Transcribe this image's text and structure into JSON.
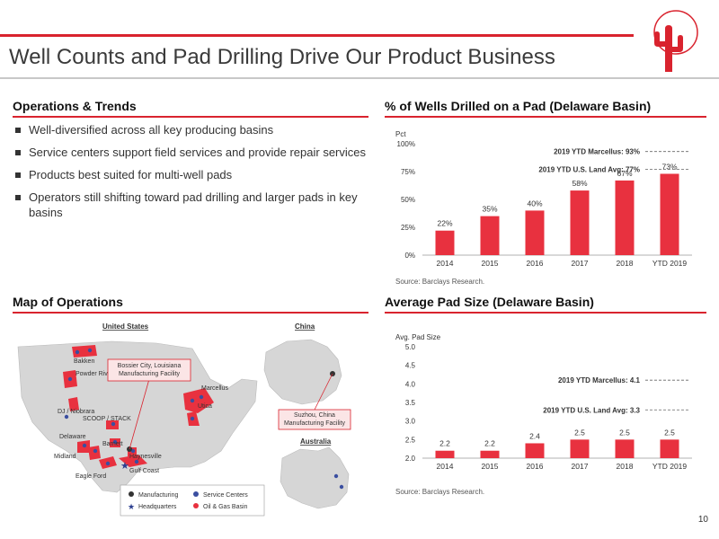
{
  "slide": {
    "title": "Well Counts and Pad Drilling Drive Our Product Business",
    "page_number": "10",
    "accent_color": "#d9232e"
  },
  "operations": {
    "heading": "Operations & Trends",
    "bullets": [
      "Well-diversified across all key producing basins",
      "Service centers support field services and provide repair services",
      "Products best suited for multi-well pads",
      "Operators still shifting toward pad drilling and larger pads in key basins"
    ]
  },
  "map": {
    "heading": "Map of Operations",
    "us_label": "United States",
    "china_label": "China",
    "australia_label": "Australia",
    "basins": [
      "Bakken",
      "Powder River Basin",
      "DJ / Niobrara",
      "SCOOP / STACK",
      "Delaware",
      "Midland",
      "Barnett",
      "Haynesville",
      "Eagle Ford",
      "Gulf Coast",
      "Marcellus",
      "Utica"
    ],
    "callout_bossier": "Bossier City, Louisiana Manufacturing Facility",
    "callout_suzhou": "Suzhou, China Manufacturing Facility",
    "legend": {
      "manufacturing": "Manufacturing",
      "headquarters": "Headquarters",
      "service_centers": "Service Centers",
      "basin": "Oil & Gas Basin"
    }
  },
  "chart_data": [
    {
      "type": "bar",
      "title": "% of Wells Drilled on a Pad (Delaware Basin)",
      "ylabel": "Pct",
      "categories": [
        "2014",
        "2015",
        "2016",
        "2017",
        "2018",
        "YTD 2019"
      ],
      "values": [
        22,
        35,
        40,
        58,
        67,
        73
      ],
      "value_labels": [
        "22%",
        "35%",
        "40%",
        "58%",
        "67%",
        "73%"
      ],
      "ylim": [
        0,
        100
      ],
      "yticks": [
        0,
        25,
        50,
        75,
        100
      ],
      "ytick_labels": [
        "0%",
        "25%",
        "50%",
        "75%",
        "100%"
      ],
      "reference_lines": [
        {
          "label": "2019 YTD Marcellus: 93%",
          "value": 93
        },
        {
          "label": "2019 YTD U.S. Land Avg: 77%",
          "value": 77
        }
      ],
      "source": "Source: Barclays Research.",
      "bar_color": "#e8313f"
    },
    {
      "type": "bar",
      "title": "Average Pad Size (Delaware Basin)",
      "ylabel": "Avg. Pad Size",
      "categories": [
        "2014",
        "2015",
        "2016",
        "2017",
        "2018",
        "YTD 2019"
      ],
      "values": [
        2.2,
        2.2,
        2.4,
        2.5,
        2.5,
        2.5
      ],
      "value_labels": [
        "2.2",
        "2.2",
        "2.4",
        "2.5",
        "2.5",
        "2.5"
      ],
      "ylim": [
        2.0,
        5.0
      ],
      "yticks": [
        2.0,
        2.5,
        3.0,
        3.5,
        4.0,
        4.5,
        5.0
      ],
      "ytick_labels": [
        "2.0",
        "2.5",
        "3.0",
        "3.5",
        "4.0",
        "4.5",
        "5.0"
      ],
      "reference_lines": [
        {
          "label": "2019 YTD Marcellus: 4.1",
          "value": 4.1
        },
        {
          "label": "2019 YTD U.S. Land Avg: 3.3",
          "value": 3.3
        }
      ],
      "source": "Source: Barclays Research.",
      "bar_color": "#e8313f"
    }
  ]
}
